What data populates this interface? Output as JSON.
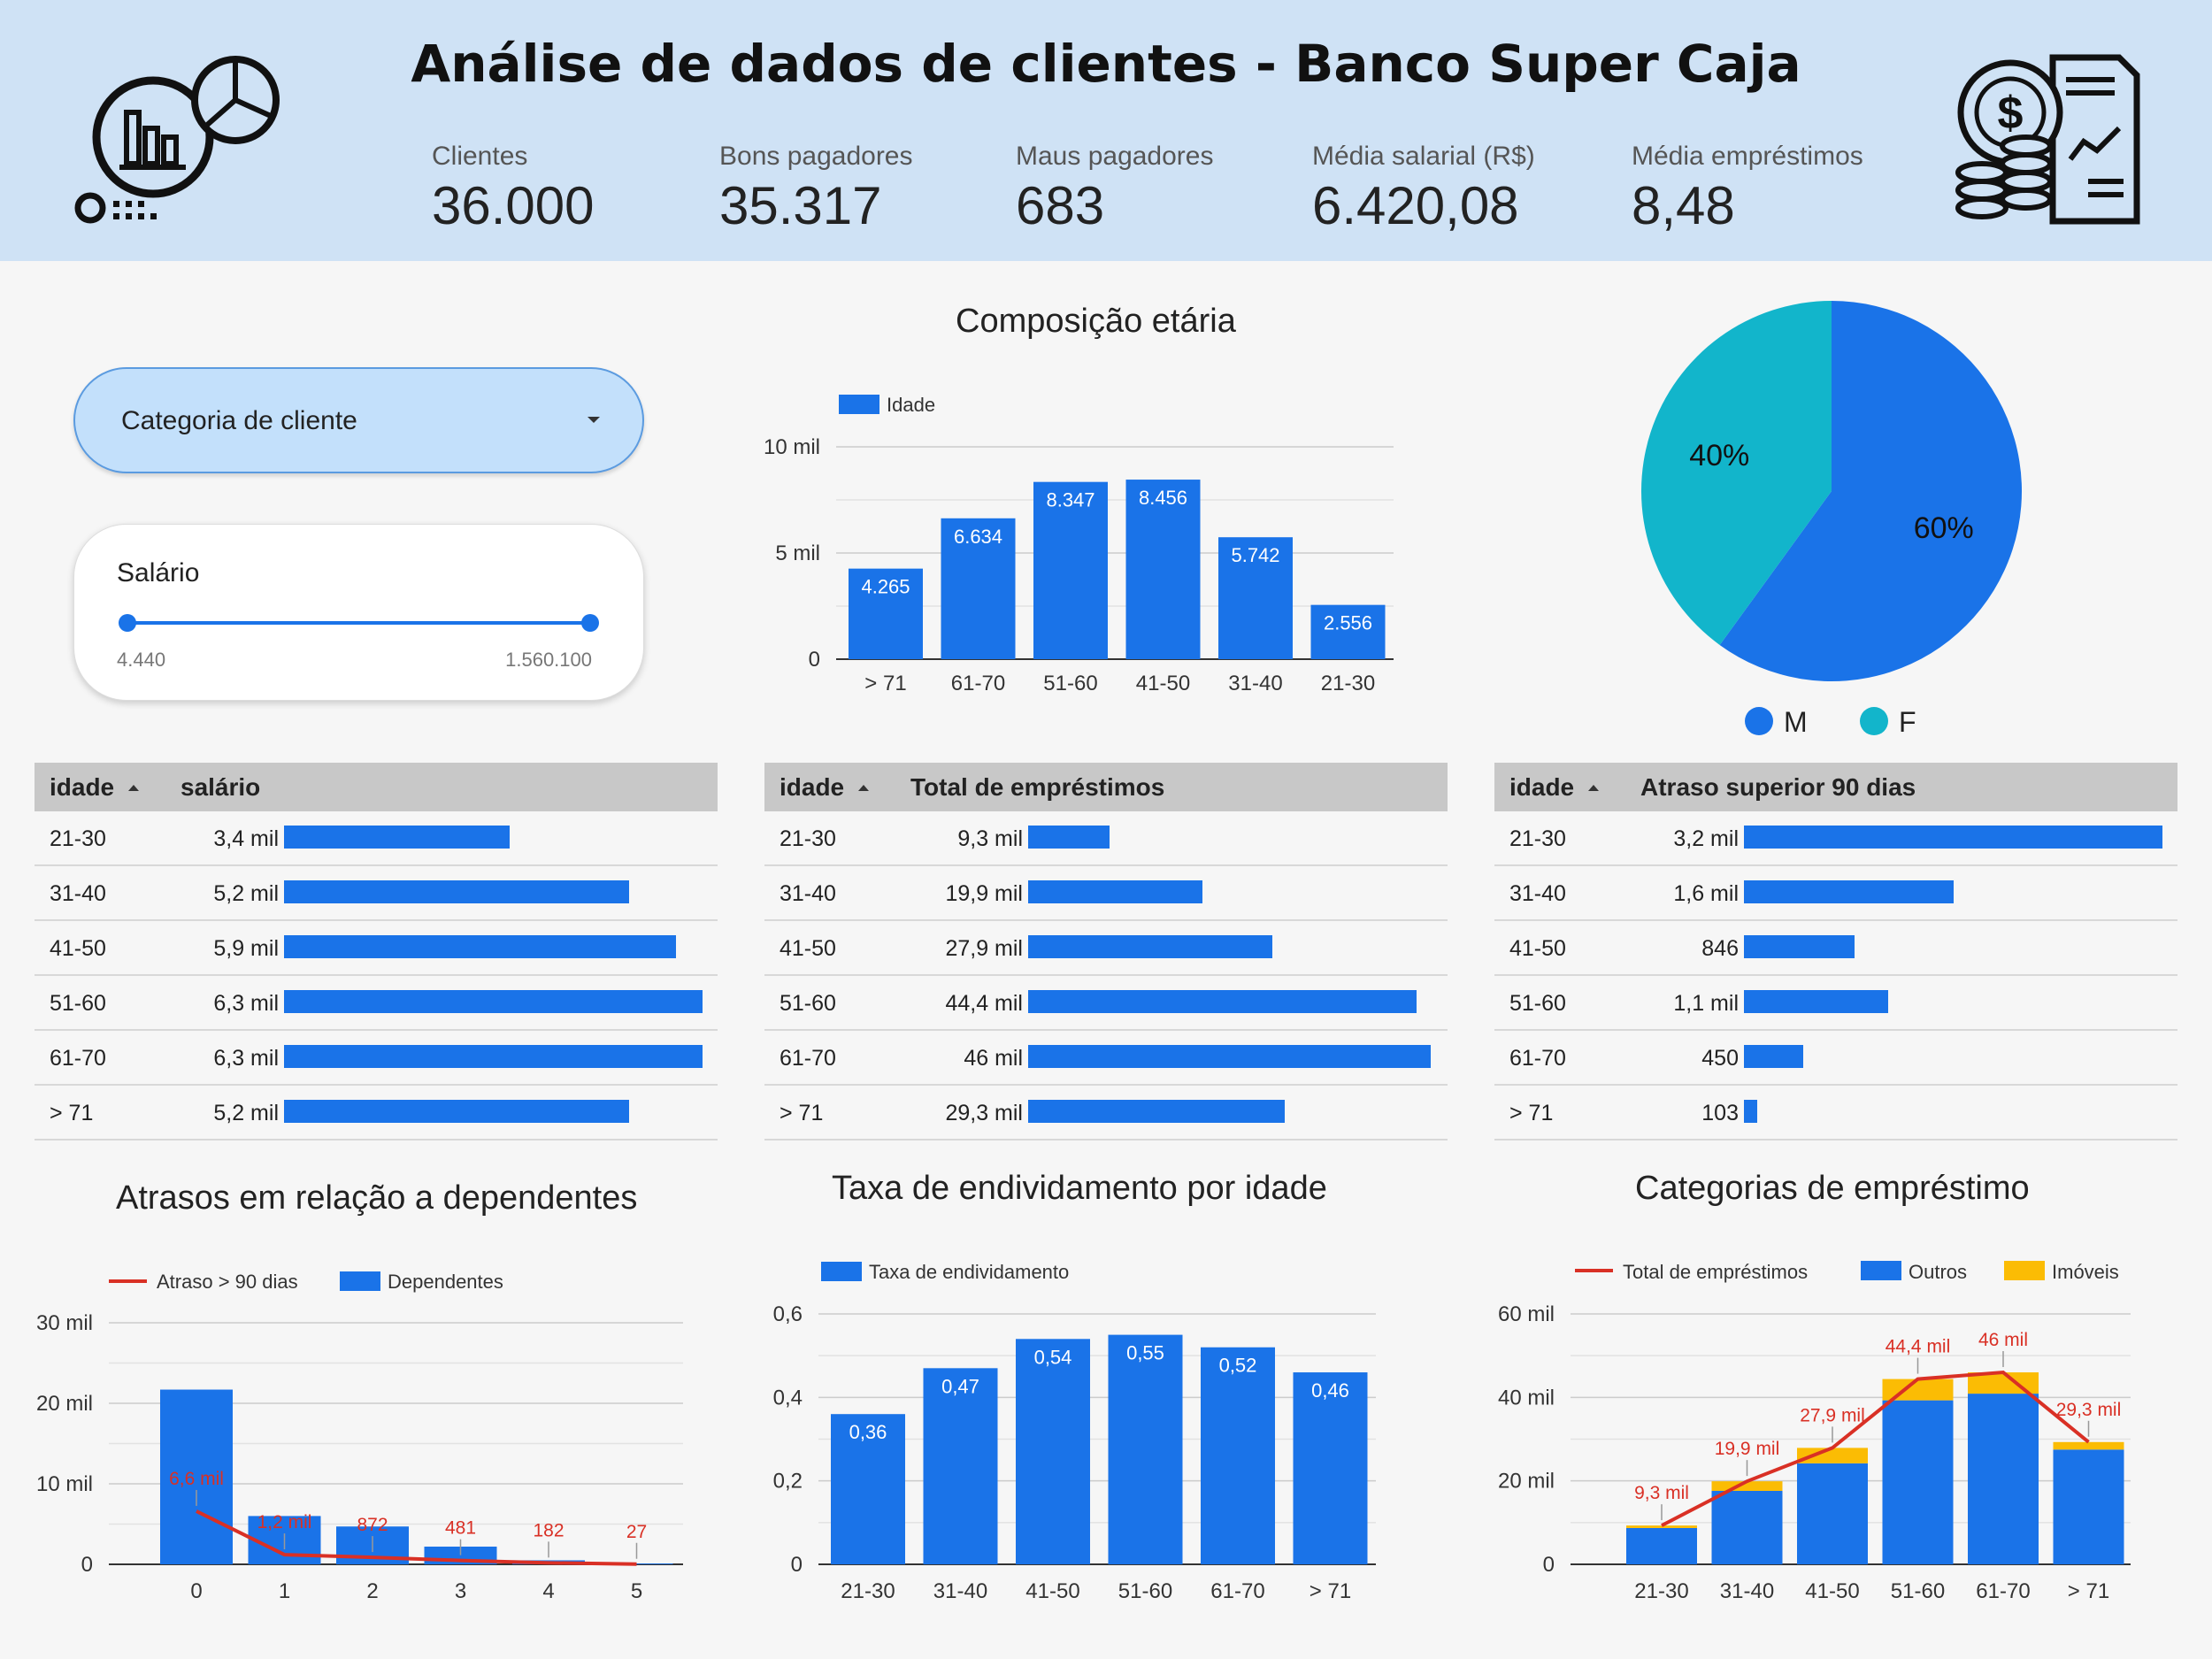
{
  "header": {
    "title": "Análise de dados de clientes - Banco Super Caja",
    "kpis": [
      {
        "label": "Clientes",
        "value": "36.000"
      },
      {
        "label": "Bons pagadores",
        "value": "35.317"
      },
      {
        "label": "Maus pagadores",
        "value": "683"
      },
      {
        "label": "Média salarial (R$)",
        "value": "6.420,08"
      },
      {
        "label": "Média empréstimos",
        "value": "8,48"
      }
    ],
    "icons": [
      "analytics-icon",
      "finance-document-icon"
    ]
  },
  "filters": {
    "category_label": "Categoria de cliente",
    "salary_label": "Salário",
    "salary_min": "4.440",
    "salary_max": "1.560.100"
  },
  "colors": {
    "blue": "#1a73e8",
    "teal": "#12b5cb",
    "red": "#d93025",
    "yellow": "#fbbc04"
  },
  "chart_data": [
    {
      "id": "age",
      "type": "bar",
      "title": "Composição etária",
      "legend": [
        "Idade"
      ],
      "categories": [
        "> 71",
        "61-70",
        "51-60",
        "41-50",
        "31-40",
        "21-30"
      ],
      "values": [
        4265,
        6634,
        8347,
        8456,
        5742,
        2556
      ],
      "labels": [
        "4.265",
        "6.634",
        "8.347",
        "8.456",
        "5.742",
        "2.556"
      ],
      "yticks": [
        "0",
        "5 mil",
        "10 mil"
      ],
      "ylim": [
        0,
        10000
      ]
    },
    {
      "id": "gender",
      "type": "pie",
      "legend": [
        "M",
        "F"
      ],
      "values": [
        60,
        40
      ],
      "labels": [
        "60%",
        "40%"
      ]
    },
    {
      "id": "tbl-salary",
      "type": "table",
      "columns": [
        "idade",
        "salário"
      ],
      "rows": [
        "21-30",
        "31-40",
        "41-50",
        "51-60",
        "61-70",
        "> 71"
      ],
      "values": [
        3400,
        5200,
        5900,
        6300,
        6300,
        5200
      ],
      "labels": [
        "3,4 mil",
        "5,2 mil",
        "5,9 mil",
        "6,3 mil",
        "6,3 mil",
        "5,2 mil"
      ]
    },
    {
      "id": "tbl-loans",
      "type": "table",
      "columns": [
        "idade",
        "Total de empréstimos"
      ],
      "rows": [
        "21-30",
        "31-40",
        "41-50",
        "51-60",
        "61-70",
        "> 71"
      ],
      "values": [
        9300,
        19900,
        27900,
        44400,
        46000,
        29300
      ],
      "labels": [
        "9,3 mil",
        "19,9 mil",
        "27,9 mil",
        "44,4 mil",
        "46 mil",
        "29,3 mil"
      ]
    },
    {
      "id": "tbl-delay",
      "type": "table",
      "columns": [
        "idade",
        "Atraso superior 90 dias"
      ],
      "rows": [
        "21-30",
        "31-40",
        "41-50",
        "51-60",
        "61-70",
        "> 71"
      ],
      "values": [
        3200,
        1600,
        846,
        1100,
        450,
        103
      ],
      "labels": [
        "3,2 mil",
        "1,6 mil",
        "846",
        "1,1 mil",
        "450",
        "103"
      ]
    },
    {
      "id": "dependents",
      "type": "bar",
      "title": "Atrasos em relação a dependentes",
      "legend": [
        "Atraso > 90 dias",
        "Dependentes"
      ],
      "categories": [
        "0",
        "1",
        "2",
        "3",
        "4",
        "5"
      ],
      "bar_values": [
        21700,
        6000,
        4700,
        2200,
        500,
        100
      ],
      "line_values": [
        6600,
        1200,
        872,
        481,
        182,
        27
      ],
      "line_labels": [
        "6,6 mil",
        "1,2 mil",
        "872",
        "481",
        "182",
        "27"
      ],
      "yticks": [
        "0",
        "10 mil",
        "20 mil",
        "30 mil"
      ],
      "ylim": [
        0,
        30000
      ]
    },
    {
      "id": "debt",
      "type": "bar",
      "title": "Taxa de endividamento por idade",
      "legend": [
        "Taxa de endividamento"
      ],
      "categories": [
        "21-30",
        "31-40",
        "41-50",
        "51-60",
        "61-70",
        "> 71"
      ],
      "values": [
        0.36,
        0.47,
        0.54,
        0.55,
        0.52,
        0.46
      ],
      "labels": [
        "0,36",
        "0,47",
        "0,54",
        "0,55",
        "0,52",
        "0,46"
      ],
      "yticks": [
        "0",
        "0,2",
        "0,4",
        "0,6"
      ],
      "ylim": [
        0,
        0.6
      ]
    },
    {
      "id": "loan-cat",
      "type": "bar",
      "title": "Categorias de empréstimo",
      "legend": [
        "Total de empréstimos",
        "Outros",
        "Imóveis"
      ],
      "categories": [
        "21-30",
        "31-40",
        "41-50",
        "51-60",
        "61-70",
        "> 71"
      ],
      "outros": [
        8700,
        17600,
        24200,
        39300,
        40900,
        27500
      ],
      "imoveis": [
        600,
        2300,
        3700,
        5100,
        5100,
        1800
      ],
      "totals": [
        9300,
        19900,
        27900,
        44400,
        46000,
        29300
      ],
      "total_labels": [
        "9,3 mil",
        "19,9 mil",
        "27,9 mil",
        "44,4 mil",
        "46 mil",
        "29,3 mil"
      ],
      "yticks": [
        "0",
        "20 mil",
        "40 mil",
        "60 mil"
      ],
      "ylim": [
        0,
        60000
      ]
    }
  ]
}
